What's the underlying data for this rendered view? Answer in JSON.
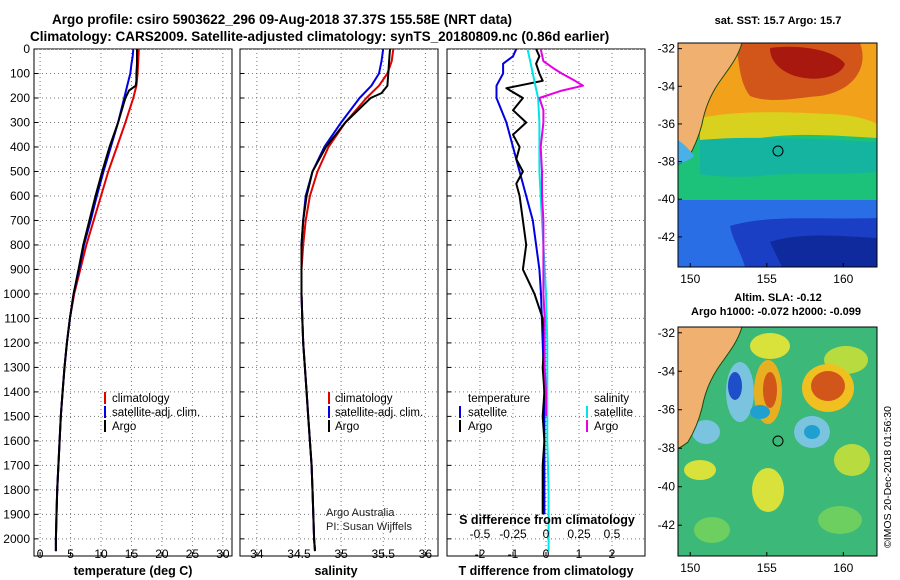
{
  "title_line1": "Argo profile: csiro 5903622_296 09-Aug-2018 37.37S 155.58E (NRT data)",
  "title_line2": "Climatology: CARS2009. Satellite-adjusted climatology: synTS_20180809.nc (0.86d earlier)",
  "credit_line1": "Argo Australia",
  "credit_line2": "PI: Susan Wijffels",
  "side_label": "©IMOS 20-Dec-2018 01:56:30",
  "colors": {
    "climatology": "#e00000",
    "satellite": "#0000e6",
    "argo": "#000000",
    "sat_salinity": "#00e5e5",
    "argo_salinity": "#e600e6"
  },
  "depth_axis": {
    "ticks": [
      "0",
      "100",
      "200",
      "300",
      "400",
      "500",
      "600",
      "700",
      "800",
      "900",
      "1000",
      "1100",
      "1200",
      "1300",
      "1400",
      "1500",
      "1600",
      "1700",
      "1800",
      "1900",
      "2000"
    ],
    "range": [
      0,
      2070
    ]
  },
  "chart_data": [
    {
      "type": "line",
      "name": "temperature",
      "xlabel": "temperature (deg C)",
      "xlim": [
        -1,
        31.5
      ],
      "xticks": [
        "0",
        "5",
        "10",
        "15",
        "20",
        "25",
        "30"
      ],
      "ylim": [
        2070,
        0
      ],
      "legend": {
        "placement": "center-left",
        "entries": [
          "climatology",
          "satellite-adj. clim.",
          "Argo"
        ]
      },
      "series": [
        {
          "name": "climatology",
          "color": "#e00000",
          "depth": [
            0,
            50,
            100,
            150,
            200,
            300,
            400,
            500,
            600,
            700,
            800,
            900,
            1000,
            1100,
            1200,
            1300,
            1400,
            1500,
            1600,
            1700,
            1800,
            1900,
            2000,
            2050
          ],
          "values": [
            16.2,
            16.1,
            16.0,
            15.8,
            15.3,
            14.0,
            12.6,
            11.2,
            10.0,
            8.8,
            7.6,
            6.6,
            5.6,
            4.9,
            4.4,
            4.0,
            3.7,
            3.4,
            3.2,
            3.0,
            2.8,
            2.7,
            2.6,
            2.6
          ]
        },
        {
          "name": "satellite-adj. clim.",
          "color": "#0000e6",
          "depth": [
            0,
            30,
            60,
            100,
            150,
            200,
            300,
            400,
            500,
            600,
            700,
            800,
            900,
            1000,
            1100,
            1200,
            1300,
            1400,
            1500,
            1600,
            1700,
            1800,
            1900,
            2000,
            2050
          ],
          "values": [
            15.3,
            15.2,
            15.0,
            14.8,
            14.3,
            13.8,
            12.8,
            11.6,
            10.4,
            9.3,
            8.3,
            7.2,
            6.4,
            5.5,
            4.9,
            4.4,
            4.0,
            3.7,
            3.4,
            3.2,
            3.0,
            2.8,
            2.7,
            2.6,
            2.6
          ]
        },
        {
          "name": "Argo",
          "color": "#000000",
          "depth": [
            0,
            20,
            60,
            100,
            130,
            150,
            170,
            200,
            300,
            400,
            500,
            600,
            700,
            800,
            900,
            1000,
            1100,
            1200,
            1300,
            1400,
            1500,
            1600,
            1700,
            1800,
            1900,
            2000,
            2050
          ],
          "values": [
            15.9,
            15.9,
            15.9,
            15.8,
            15.8,
            15.7,
            14.6,
            14.0,
            12.8,
            11.4,
            10.2,
            9.1,
            8.1,
            7.1,
            6.3,
            5.5,
            4.9,
            4.4,
            4.0,
            3.7,
            3.4,
            3.2,
            3.0,
            2.8,
            2.7,
            2.6,
            2.6
          ]
        }
      ]
    },
    {
      "type": "line",
      "name": "salinity",
      "xlabel": "salinity",
      "xlim": [
        33.8,
        36.15
      ],
      "xticks": [
        "34",
        "34.5",
        "35",
        "35.5",
        "36"
      ],
      "ylim": [
        2070,
        0
      ],
      "legend": {
        "placement": "center-right",
        "entries": [
          "climatology",
          "satellite-adj. clim.",
          "Argo"
        ]
      },
      "series": [
        {
          "name": "climatology",
          "color": "#e00000",
          "depth": [
            0,
            50,
            100,
            150,
            200,
            300,
            400,
            500,
            600,
            700,
            800,
            900,
            1000,
            1100,
            1200,
            1300,
            1400,
            1500,
            1600,
            1700,
            1800,
            1900,
            2000,
            2050
          ],
          "values": [
            35.62,
            35.6,
            35.55,
            35.45,
            35.3,
            35.05,
            34.85,
            34.72,
            34.63,
            34.58,
            34.55,
            34.53,
            34.53,
            34.54,
            34.55,
            34.57,
            34.59,
            34.61,
            34.63,
            34.65,
            34.66,
            34.67,
            34.68,
            34.69
          ]
        },
        {
          "name": "satellite-adj. clim.",
          "color": "#0000e6",
          "depth": [
            0,
            50,
            100,
            150,
            200,
            300,
            400,
            500,
            600,
            700,
            800,
            900,
            1000,
            1100,
            1200,
            1300,
            1400,
            1500,
            1600,
            1700,
            1800,
            1900,
            2000,
            2050
          ],
          "values": [
            35.5,
            35.48,
            35.45,
            35.36,
            35.22,
            35.0,
            34.8,
            34.66,
            34.58,
            34.55,
            34.53,
            34.53,
            34.53,
            34.54,
            34.55,
            34.57,
            34.59,
            34.61,
            34.63,
            34.65,
            34.66,
            34.67,
            34.68,
            34.69
          ]
        },
        {
          "name": "Argo",
          "color": "#000000",
          "depth": [
            0,
            50,
            100,
            150,
            180,
            200,
            300,
            400,
            500,
            600,
            700,
            800,
            900,
            1000,
            1100,
            1200,
            1300,
            1400,
            1500,
            1600,
            1700,
            1800,
            1900,
            2000,
            2050
          ],
          "values": [
            35.58,
            35.57,
            35.56,
            35.55,
            35.48,
            35.35,
            35.05,
            34.82,
            34.66,
            34.59,
            34.55,
            34.53,
            34.53,
            34.53,
            34.54,
            34.55,
            34.57,
            34.59,
            34.61,
            34.63,
            34.65,
            34.66,
            34.67,
            34.68,
            34.69
          ]
        }
      ]
    },
    {
      "type": "line",
      "name": "differences",
      "xlabel": "T difference from climatology",
      "xlabel_top": "S difference from climatology",
      "xlim": [
        -3,
        3
      ],
      "xticks": [
        "-2",
        "-1",
        "0",
        "1",
        "2"
      ],
      "sticks": [
        "-0.5",
        "-0.25",
        "0",
        "0.25",
        "0.5"
      ],
      "ylim": [
        2070,
        0
      ],
      "legend": {
        "placement": "center",
        "temperature_heading": "temperature",
        "salinity_heading": "salinity",
        "temperature_entries": [
          "satellite",
          "Argo"
        ],
        "salinity_entries": [
          "satellite",
          "Argo"
        ]
      },
      "series": [
        {
          "name": "temperature satellite",
          "color": "#0000e6",
          "depth": [
            0,
            30,
            60,
            100,
            150,
            200,
            300,
            400,
            500,
            600,
            700,
            800,
            900,
            1000,
            1200,
            1400,
            1600,
            1800,
            1900
          ],
          "values": [
            -0.9,
            -1.0,
            -1.3,
            -1.3,
            -1.5,
            -1.5,
            -1.2,
            -1.0,
            -0.8,
            -0.6,
            -0.4,
            -0.3,
            -0.2,
            -0.15,
            -0.1,
            -0.05,
            -0.05,
            -0.05,
            -0.05
          ]
        },
        {
          "name": "temperature Argo",
          "color": "#000000",
          "depth": [
            0,
            30,
            60,
            100,
            130,
            160,
            200,
            250,
            300,
            350,
            400,
            450,
            500,
            550,
            600,
            700,
            800,
            900,
            1000,
            1100,
            1200,
            1300,
            1400,
            1500,
            1600,
            1700,
            1800,
            1900
          ],
          "values": [
            -0.3,
            -0.2,
            -0.3,
            -0.2,
            -0.1,
            -1.2,
            -0.7,
            -1.0,
            -0.6,
            -1.0,
            -0.8,
            -0.9,
            -0.7,
            -0.9,
            -0.8,
            -0.7,
            -0.6,
            -0.7,
            -0.35,
            -0.1,
            -0.05,
            -0.1,
            -0.05,
            -0.1,
            -0.05,
            -0.1,
            -0.1,
            -0.1
          ]
        },
        {
          "name": "salinity satellite",
          "color": "#00e5e5",
          "depth": [
            0,
            50,
            100,
            150,
            200,
            300,
            400,
            500,
            600,
            700,
            800,
            900,
            1000,
            1200,
            1400,
            1600,
            1800,
            2000,
            2050
          ],
          "values": [
            -0.14,
            -0.12,
            -0.1,
            -0.08,
            -0.06,
            -0.05,
            -0.05,
            -0.05,
            -0.04,
            -0.03,
            -0.02,
            -0.01,
            0,
            0.01,
            0.01,
            0.01,
            0.02,
            0.02,
            0.02
          ]
        },
        {
          "name": "salinity Argo",
          "color": "#e600e6",
          "depth": [
            0,
            50,
            80,
            100,
            130,
            150,
            170,
            200,
            250,
            300,
            400,
            500,
            600,
            700,
            800,
            900,
            1000,
            1100,
            1200,
            1300,
            1400,
            1500
          ],
          "values": [
            -0.04,
            -0.02,
            0.06,
            0.12,
            0.22,
            0.28,
            0.12,
            -0.05,
            -0.02,
            -0.02,
            -0.04,
            -0.03,
            -0.03,
            -0.02,
            -0.02,
            -0.02,
            -0.02,
            -0.01,
            -0.01,
            -0.01,
            0,
            0
          ]
        }
      ]
    }
  ],
  "maps": [
    {
      "name": "sst-map",
      "title": "sat. SST: 15.7 Argo: 15.7",
      "lat_ticks": [
        "-32",
        "-34",
        "-36",
        "-38",
        "-40",
        "-42"
      ],
      "lon_ticks": [
        "150",
        "155",
        "160"
      ],
      "lat_range": [
        -31.7,
        -43.6
      ],
      "lon_range": [
        149.2,
        162.2
      ],
      "marker": {
        "lon": 155.58,
        "lat": -37.37
      }
    },
    {
      "name": "sla-map",
      "title": "Altim. SLA: -0.12",
      "subtitle": "Argo h1000: -0.072 h2000: -0.099",
      "lat_ticks": [
        "-32",
        "-34",
        "-36",
        "-38",
        "-40",
        "-42"
      ],
      "lon_ticks": [
        "150",
        "155",
        "160"
      ],
      "lat_range": [
        -31.7,
        -43.6
      ],
      "lon_range": [
        149.2,
        162.2
      ],
      "marker": {
        "lon": 155.58,
        "lat": -37.37
      }
    }
  ]
}
